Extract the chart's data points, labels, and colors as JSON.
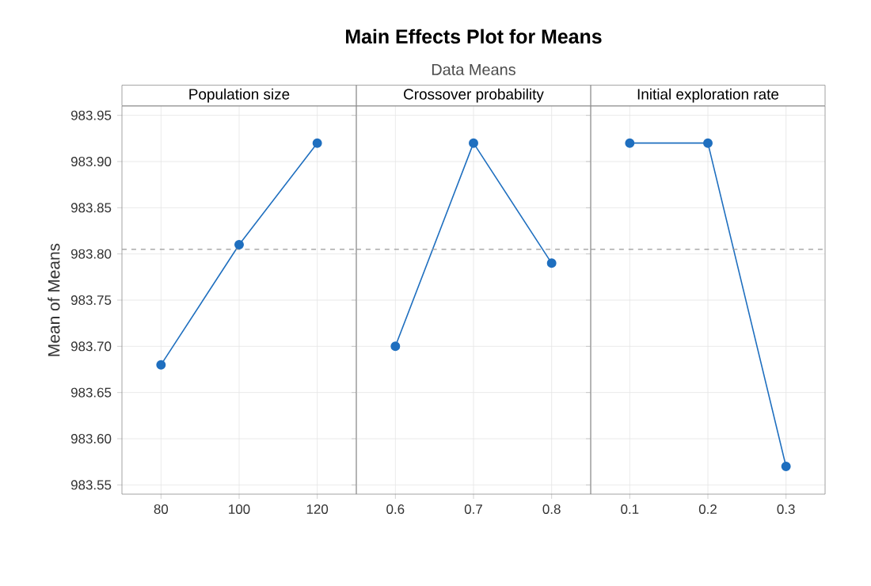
{
  "chart_data": [
    {
      "type": "line",
      "xlabel": "Population size",
      "ylabel": "Mean of Means",
      "x": [
        80,
        100,
        120
      ],
      "xlim": [
        70,
        130
      ],
      "xticks": [
        80,
        100,
        120
      ],
      "ylim": [
        983.54,
        983.96
      ],
      "yticks": [
        983.55,
        {
          "value": 983.6,
          "label": "983.60"
        },
        983.65,
        {
          "value": 983.7,
          "label": "983.70"
        },
        983.75,
        {
          "value": 983.8,
          "label": "983.80"
        },
        983.85,
        {
          "value": 983.9,
          "label": "983.90"
        },
        983.95
      ],
      "series": [
        {
          "color": "#1f6fbf",
          "values": [
            983.68,
            983.81,
            983.92
          ]
        }
      ],
      "ref_lines": [
        {
          "axis": "y",
          "value": 983.805,
          "color": "#999999",
          "line_style": "dashed"
        }
      ],
      "grid": true,
      "marker": "circle",
      "line_style": "solid"
    },
    {
      "type": "line",
      "title": "Main Effects Plot for Means",
      "subtitle": "Data Means",
      "xlabel": "Crossover probability",
      "x": [
        0.6,
        0.7,
        0.8
      ],
      "xlim": [
        0.55,
        0.85
      ],
      "xticks": [
        0.6,
        0.7,
        0.8
      ],
      "ylim": [
        983.54,
        983.96
      ],
      "yticks": [
        983.55,
        983.6,
        983.65,
        983.7,
        983.75,
        983.8,
        983.85,
        983.9,
        983.95
      ],
      "tick_labels": "x",
      "series": [
        {
          "color": "#1f6fbf",
          "values": [
            983.7,
            983.92,
            983.79
          ]
        }
      ],
      "ref_lines": [
        {
          "axis": "y",
          "value": 983.805,
          "color": "#999999",
          "line_style": "dashed"
        }
      ],
      "grid": true,
      "marker": "circle",
      "line_style": "solid"
    },
    {
      "type": "line",
      "xlabel": "Initial exploration rate",
      "x": [
        0.1,
        0.2,
        0.3
      ],
      "xlim": [
        0.05,
        0.35
      ],
      "xticks": [
        0.1,
        0.2,
        0.3
      ],
      "ylim": [
        983.54,
        983.96
      ],
      "yticks": [
        983.55,
        983.6,
        983.65,
        983.7,
        983.75,
        983.8,
        983.85,
        983.9,
        983.95
      ],
      "tick_labels": "x",
      "series": [
        {
          "color": "#1f6fbf",
          "values": [
            983.92,
            983.92,
            983.57
          ]
        }
      ],
      "ref_lines": [
        {
          "axis": "y",
          "value": 983.805,
          "color": "#999999",
          "line_style": "dashed"
        }
      ],
      "grid": true,
      "marker": "circle",
      "line_style": "solid"
    }
  ]
}
